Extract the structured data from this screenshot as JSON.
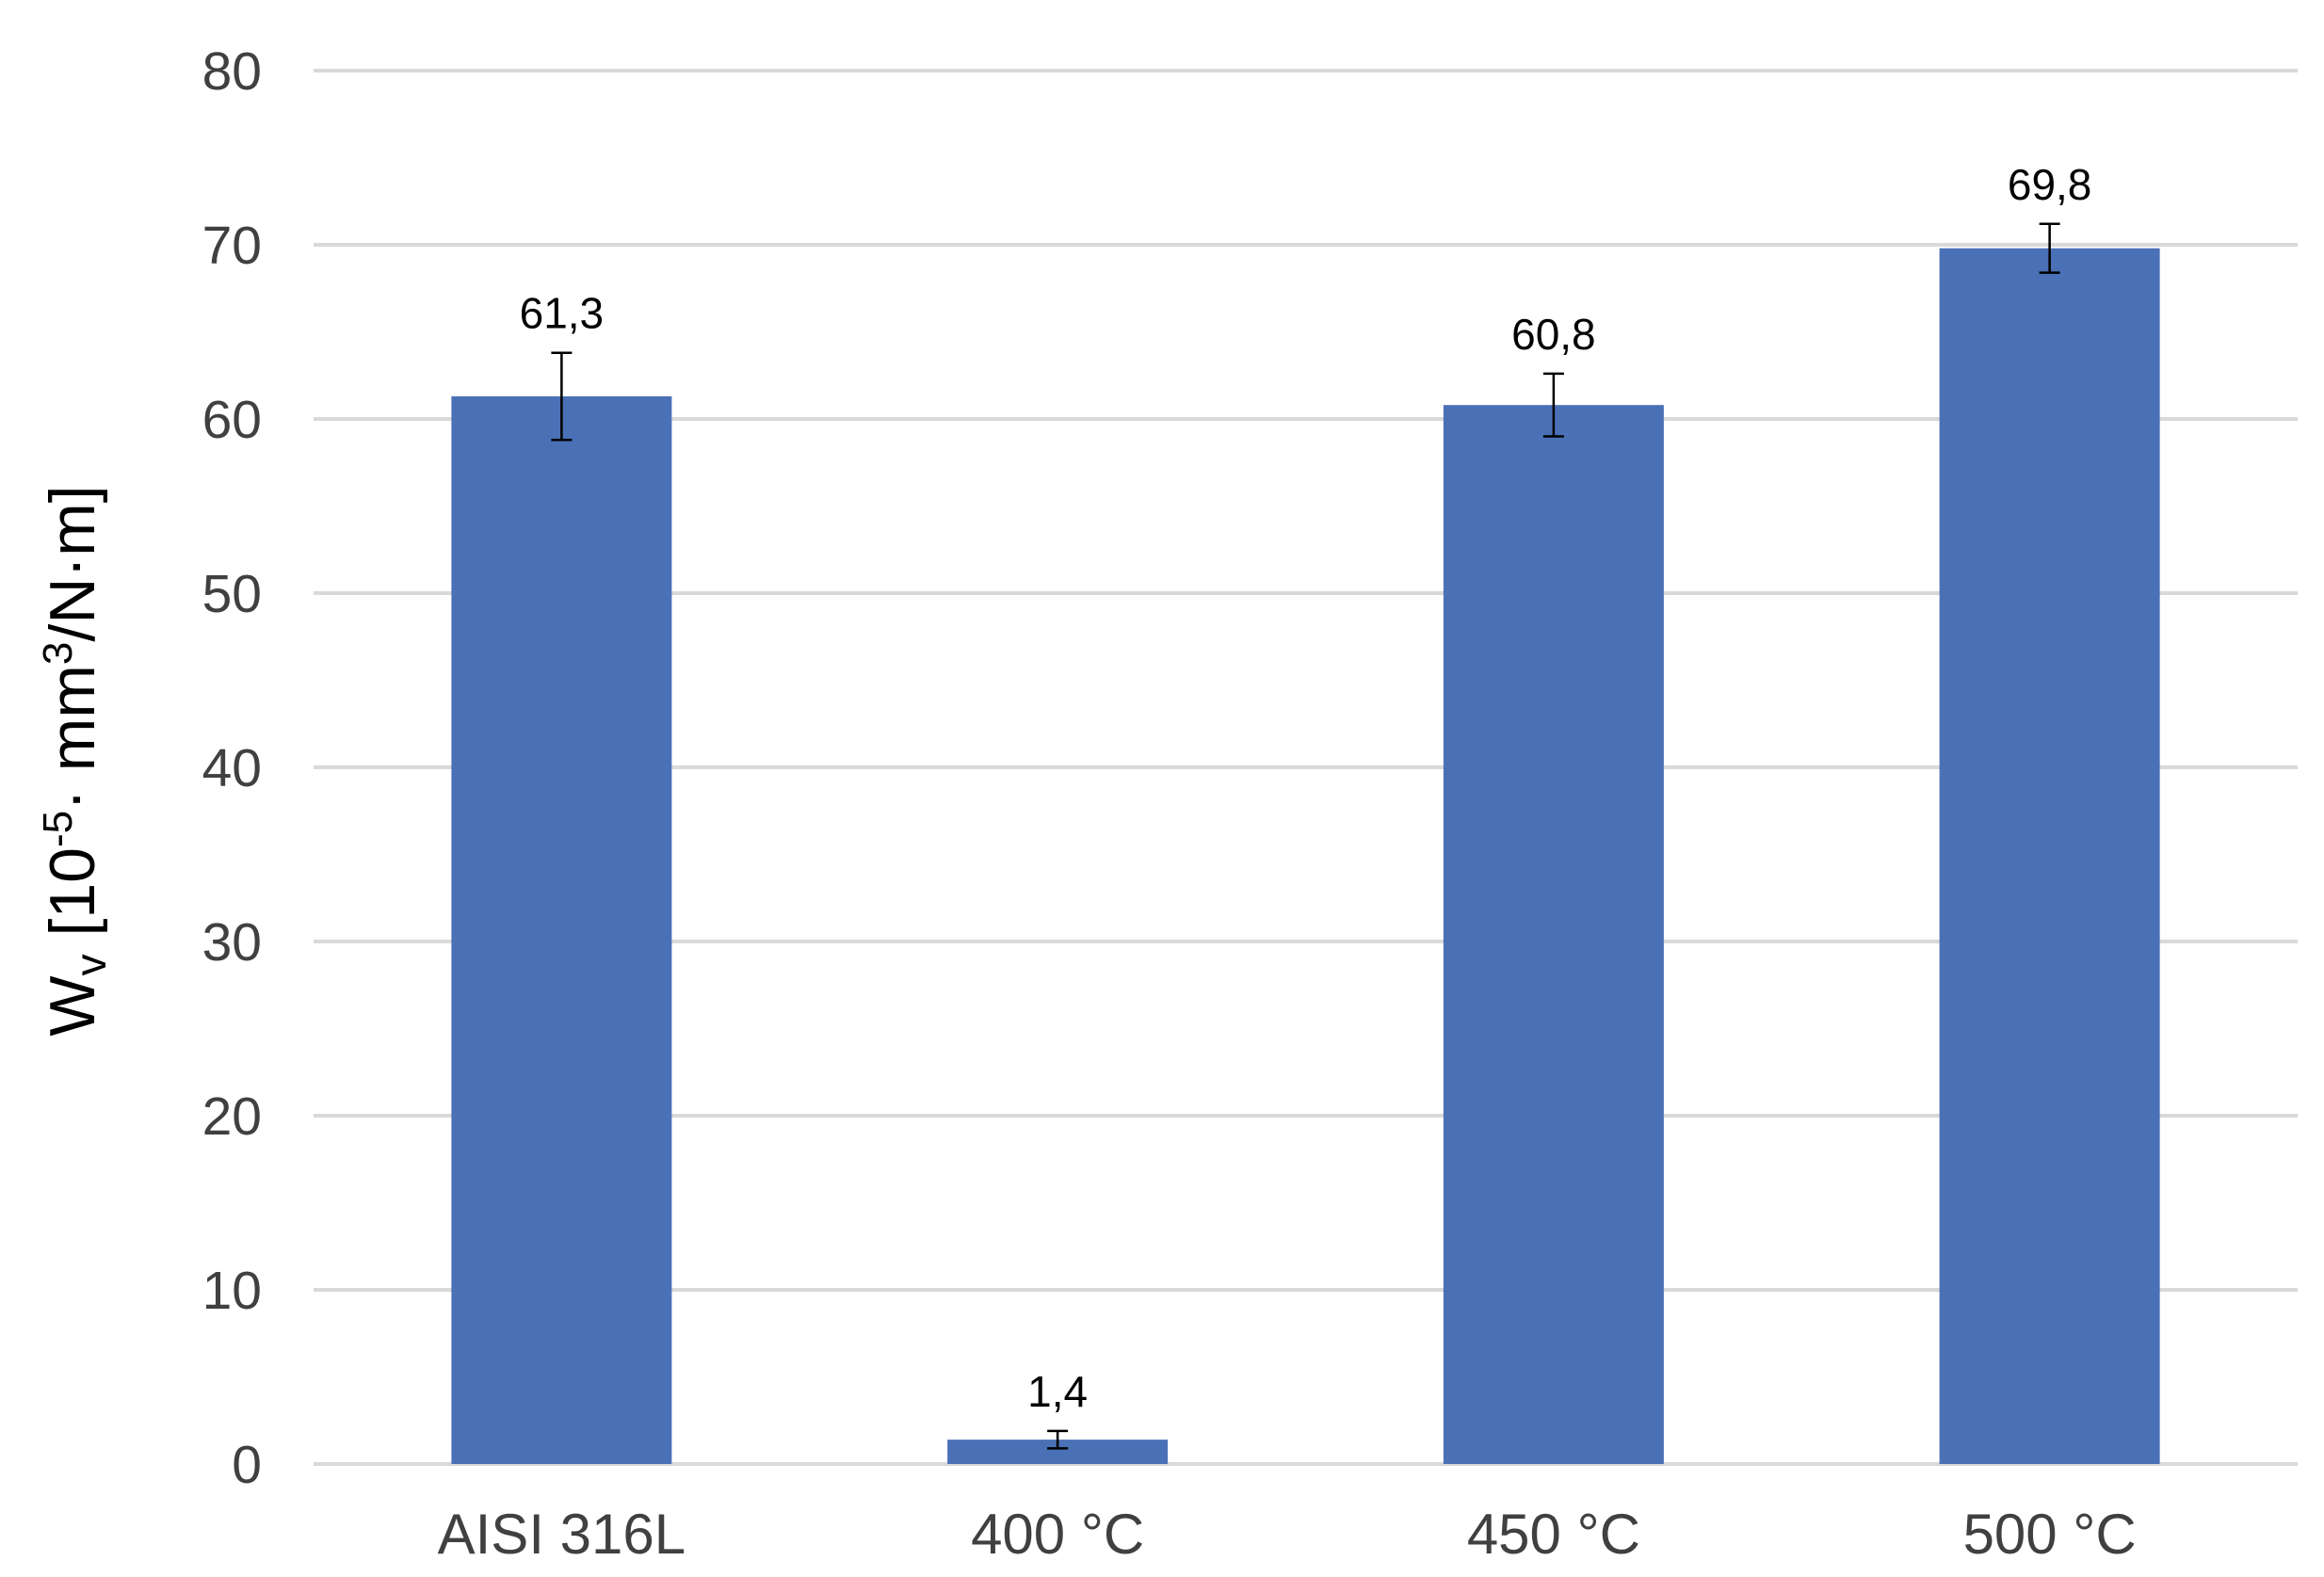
{
  "chart_data": {
    "type": "bar",
    "title": "",
    "xlabel": "",
    "ylabel_parts": {
      "main": "W",
      "sub": "v",
      "bracket_open": " [10",
      "exp": "-5",
      "middle": "· mm",
      "exp2": "3",
      "tail": "/N·m]"
    },
    "ylim": [
      0,
      80
    ],
    "yticks": [
      0,
      10,
      20,
      30,
      40,
      50,
      60,
      70,
      80
    ],
    "grid": true,
    "legend": "none",
    "categories": [
      "AISI 316L",
      "400 °C",
      "450 °C",
      "500 °C"
    ],
    "values": [
      61.3,
      1.4,
      60.8,
      69.8
    ],
    "data_labels": [
      "61,3",
      "1,4",
      "60,8",
      "69,8"
    ],
    "error_bars": [
      2.5,
      0.5,
      1.8,
      1.4
    ],
    "bar_color": "#4a71b6",
    "grid_color": "#d9d9d9"
  }
}
